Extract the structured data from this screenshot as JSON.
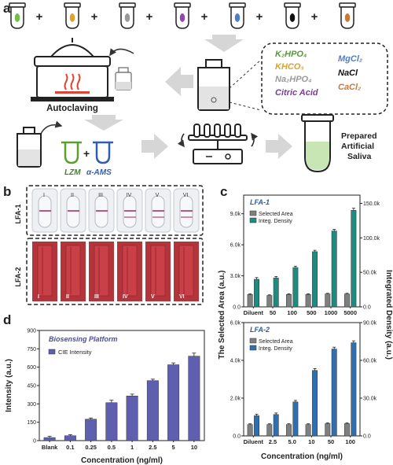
{
  "panels": {
    "a": {
      "letter": "a",
      "plus": "+",
      "tube_colors": [
        "#6fbf4a",
        "#e0a22a",
        "#9a9a9a",
        "#8e4aa6",
        "#4e7fc7",
        "#111111",
        "#c97a35"
      ],
      "chem_list": [
        {
          "text": "K₂HPO₄",
          "color": "#5a9a3b"
        },
        {
          "text": "KHCO₃",
          "color": "#e0a22a"
        },
        {
          "text": "Na₂HPO₄",
          "color": "#9a9a9a"
        },
        {
          "text": "Citric Acid",
          "color": "#7a3d9a"
        },
        {
          "text": "MgCl₂",
          "color": "#4e7fc7"
        },
        {
          "text": "NaCl",
          "color": "#111111"
        },
        {
          "text": "CaCl₂",
          "color": "#c97a35"
        }
      ],
      "autoclave_label": "Autoclaving",
      "lzm_label": "LZM",
      "ams_label": "α-AMS",
      "product_label": [
        "Prepared",
        "Artificial",
        "Saliva"
      ]
    },
    "b": {
      "letter": "b",
      "strip_labels": [
        "I",
        "II",
        "III",
        "IV",
        "V",
        "VI"
      ],
      "row1_label": "LFA-1",
      "row2_label": "LFA-2"
    },
    "c": {
      "letter": "c"
    },
    "d": {
      "letter": "d"
    }
  },
  "chart_data": [
    {
      "id": "c-top",
      "type": "bar",
      "panel_label": "LFA-1",
      "categories": [
        "Diluent",
        "50",
        "100",
        "500",
        "1000",
        "5000"
      ],
      "ylabel": "The Selected Area (a.u.)",
      "y2label": "Integrated Density (a.u.)",
      "xlabel": "",
      "ylim": [
        0,
        10800
      ],
      "y_ticks": [
        "0.0",
        "3.0k",
        "6.0k",
        "9.0k"
      ],
      "y2lim": [
        0,
        162000
      ],
      "y2_ticks": [
        "0.0",
        "50.0k",
        "100.0k",
        "150.0k"
      ],
      "legend": "top-left",
      "series": [
        {
          "name": "Selected Area",
          "axis": "left",
          "color": "#7f7f7f",
          "values": [
            1200,
            1100,
            1200,
            1200,
            1250,
            1250
          ],
          "errors": [
            60,
            60,
            60,
            60,
            60,
            60
          ]
        },
        {
          "name": "Integ. Density",
          "axis": "right",
          "color": "#1f8b80",
          "values": [
            40000,
            42000,
            57000,
            80000,
            110000,
            140000
          ],
          "errors": [
            2500,
            2000,
            2000,
            2000,
            2500,
            3000
          ]
        }
      ]
    },
    {
      "id": "c-bottom",
      "type": "bar",
      "panel_label": "LFA-2",
      "categories": [
        "Diluent",
        "2.5",
        "5.0",
        "10",
        "50",
        "100"
      ],
      "xlabel": "Concentration (ng/ml)",
      "ylabel": "",
      "ylim": [
        0,
        6000
      ],
      "y_ticks": [
        "0.0",
        "2.0k",
        "4.0k",
        "6.0k"
      ],
      "y2lim": [
        0,
        90000
      ],
      "y2_ticks": [
        "0.0",
        "30.0k",
        "60.0k",
        "90.0k"
      ],
      "legend": "top-left",
      "series": [
        {
          "name": "Selected Area",
          "axis": "left",
          "color": "#7f7f7f",
          "values": [
            600,
            600,
            600,
            600,
            650,
            650
          ],
          "errors": [
            40,
            40,
            40,
            40,
            40,
            40
          ]
        },
        {
          "name": "Integ. Density",
          "axis": "right",
          "color": "#2f6fb0",
          "values": [
            16000,
            17000,
            27000,
            52000,
            69000,
            74000
          ],
          "errors": [
            1200,
            1200,
            1200,
            1500,
            1500,
            1500
          ]
        }
      ]
    },
    {
      "id": "d",
      "type": "bar",
      "panel_label": "Biosensing Platform",
      "categories": [
        "Blank",
        "0.1",
        "0.25",
        "0.5",
        "1",
        "2.5",
        "5",
        "10"
      ],
      "xlabel": "Concentration (ng/ml)",
      "ylabel": "Intensity (a.u.)",
      "ylim": [
        0,
        900
      ],
      "y_ticks": [
        "0",
        "150",
        "300",
        "450",
        "600",
        "750",
        "900"
      ],
      "legend": "top-left",
      "series": [
        {
          "name": "CIE Intensity",
          "color": "#5f5fb0",
          "values": [
            25,
            40,
            175,
            310,
            365,
            490,
            620,
            690
          ],
          "errors": [
            10,
            8,
            10,
            20,
            15,
            12,
            15,
            25
          ]
        }
      ]
    }
  ]
}
